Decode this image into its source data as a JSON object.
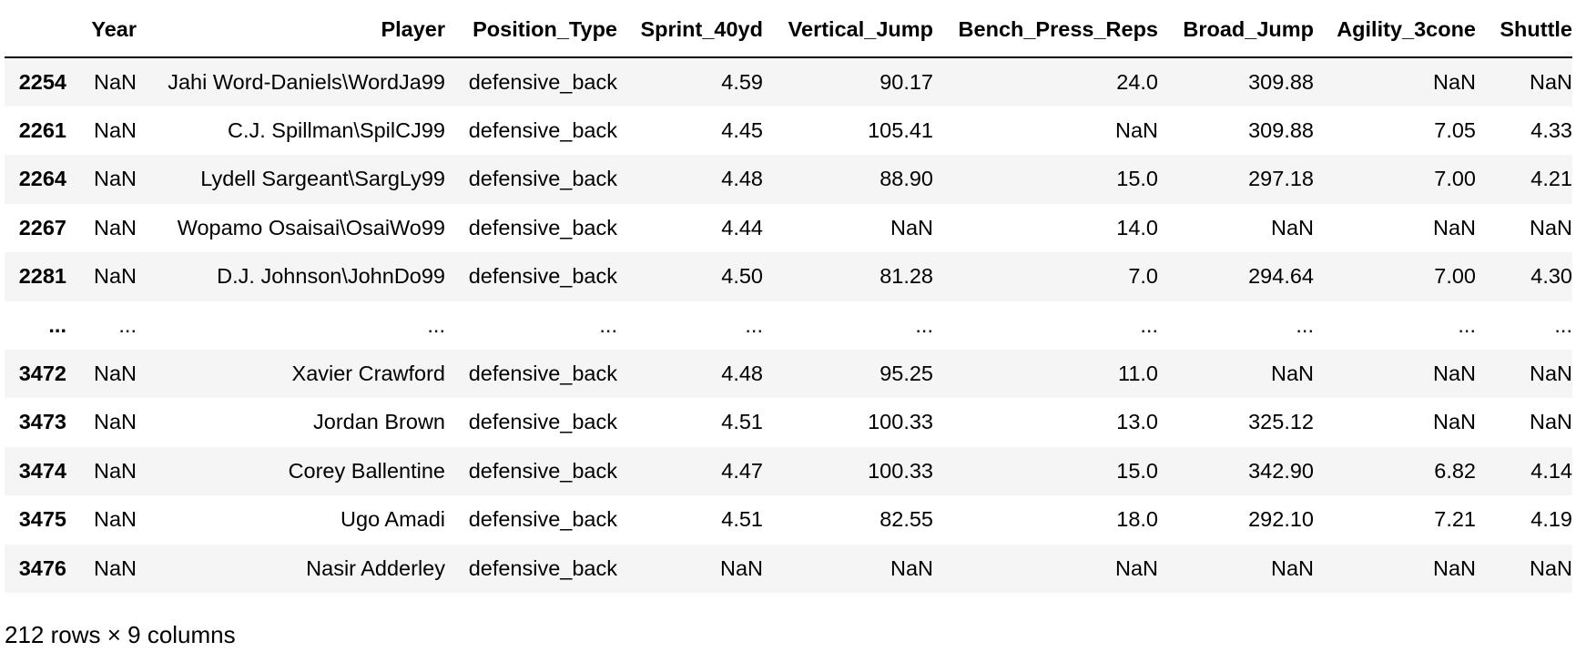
{
  "table": {
    "index_header": "",
    "columns": [
      "Year",
      "Player",
      "Position_Type",
      "Sprint_40yd",
      "Vertical_Jump",
      "Bench_Press_Reps",
      "Broad_Jump",
      "Agility_3cone",
      "Shuttle"
    ],
    "rows": [
      {
        "index": "2254",
        "cells": [
          "NaN",
          "Jahi Word-Daniels\\WordJa99",
          "defensive_back",
          "4.59",
          "90.17",
          "24.0",
          "309.88",
          "NaN",
          "NaN"
        ]
      },
      {
        "index": "2261",
        "cells": [
          "NaN",
          "C.J. Spillman\\SpilCJ99",
          "defensive_back",
          "4.45",
          "105.41",
          "NaN",
          "309.88",
          "7.05",
          "4.33"
        ]
      },
      {
        "index": "2264",
        "cells": [
          "NaN",
          "Lydell Sargeant\\SargLy99",
          "defensive_back",
          "4.48",
          "88.90",
          "15.0",
          "297.18",
          "7.00",
          "4.21"
        ]
      },
      {
        "index": "2267",
        "cells": [
          "NaN",
          "Wopamo Osaisai\\OsaiWo99",
          "defensive_back",
          "4.44",
          "NaN",
          "14.0",
          "NaN",
          "NaN",
          "NaN"
        ]
      },
      {
        "index": "2281",
        "cells": [
          "NaN",
          "D.J. Johnson\\JohnDo99",
          "defensive_back",
          "4.50",
          "81.28",
          "7.0",
          "294.64",
          "7.00",
          "4.30"
        ]
      },
      {
        "index": "...",
        "cells": [
          "...",
          "...",
          "...",
          "...",
          "...",
          "...",
          "...",
          "...",
          "..."
        ]
      },
      {
        "index": "3472",
        "cells": [
          "NaN",
          "Xavier Crawford",
          "defensive_back",
          "4.48",
          "95.25",
          "11.0",
          "NaN",
          "NaN",
          "NaN"
        ]
      },
      {
        "index": "3473",
        "cells": [
          "NaN",
          "Jordan Brown",
          "defensive_back",
          "4.51",
          "100.33",
          "13.0",
          "325.12",
          "NaN",
          "NaN"
        ]
      },
      {
        "index": "3474",
        "cells": [
          "NaN",
          "Corey Ballentine",
          "defensive_back",
          "4.47",
          "100.33",
          "15.0",
          "342.90",
          "6.82",
          "4.14"
        ]
      },
      {
        "index": "3475",
        "cells": [
          "NaN",
          "Ugo Amadi",
          "defensive_back",
          "4.51",
          "82.55",
          "18.0",
          "292.10",
          "7.21",
          "4.19"
        ]
      },
      {
        "index": "3476",
        "cells": [
          "NaN",
          "Nasir Adderley",
          "defensive_back",
          "NaN",
          "NaN",
          "NaN",
          "NaN",
          "NaN",
          "NaN"
        ]
      }
    ]
  },
  "shape_info": "212 rows × 9 columns",
  "colors": {
    "stripe": "#f5f5f5",
    "background": "#ffffff",
    "text": "#000000"
  }
}
